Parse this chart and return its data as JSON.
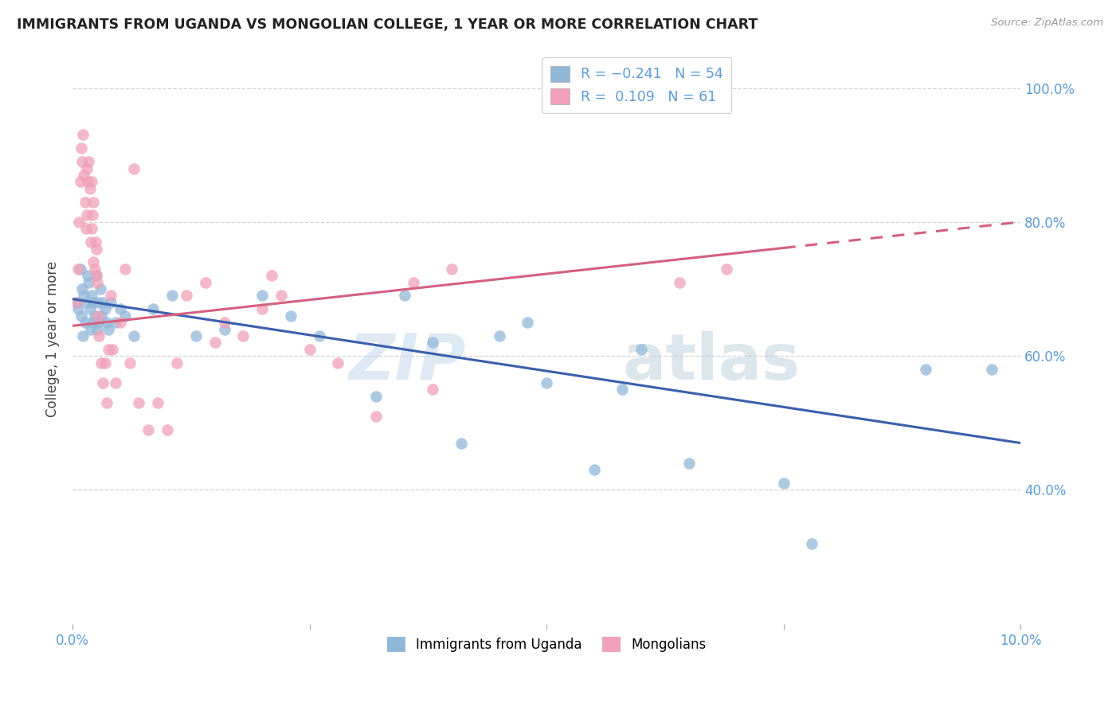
{
  "title": "IMMIGRANTS FROM UGANDA VS MONGOLIAN COLLEGE, 1 YEAR OR MORE CORRELATION CHART",
  "source": "Source: ZipAtlas.com",
  "ylabel": "College, 1 year or more",
  "xlim": [
    0.0,
    10.0
  ],
  "ylim": [
    20.0,
    105.0
  ],
  "blue_color": "#92b8d9",
  "pink_color": "#f0a0b8",
  "blue_line_color": "#3a5fad",
  "pink_line_color": "#d46080",
  "watermark_zip": "ZIP",
  "watermark_atlas": "atlas",
  "blue_line_x0": 0.0,
  "blue_line_y0": 68.5,
  "blue_line_x1": 10.0,
  "blue_line_y1": 47.0,
  "pink_line_x0": 0.0,
  "pink_line_y0": 64.5,
  "pink_line_x1": 10.0,
  "pink_line_y1": 80.0,
  "pink_solid_end": 7.5,
  "blue_x": [
    0.05,
    0.06,
    0.08,
    0.09,
    0.1,
    0.11,
    0.12,
    0.13,
    0.15,
    0.16,
    0.17,
    0.18,
    0.19,
    0.2,
    0.21,
    0.22,
    0.23,
    0.25,
    0.26,
    0.27,
    0.28,
    0.29,
    0.3,
    0.32,
    0.34,
    0.36,
    0.38,
    0.4,
    0.45,
    0.5,
    0.55,
    0.65,
    0.85,
    1.05,
    1.3,
    1.6,
    2.0,
    2.3,
    2.6,
    3.2,
    3.5,
    4.1,
    4.5,
    5.0,
    5.5,
    6.0,
    6.5,
    7.5,
    7.8,
    9.0,
    3.8,
    4.8,
    5.8,
    9.7
  ],
  "blue_y": [
    68,
    67,
    73,
    66,
    70,
    63,
    69,
    65,
    68,
    72,
    71,
    67,
    64,
    69,
    65,
    68,
    66,
    72,
    64,
    68,
    65,
    70,
    66,
    68,
    67,
    65,
    64,
    68,
    65,
    67,
    66,
    63,
    67,
    69,
    63,
    64,
    69,
    66,
    63,
    54,
    69,
    47,
    63,
    56,
    43,
    61,
    44,
    41,
    32,
    58,
    62,
    65,
    55,
    58
  ],
  "pink_x": [
    0.04,
    0.06,
    0.07,
    0.08,
    0.09,
    0.1,
    0.11,
    0.12,
    0.13,
    0.14,
    0.15,
    0.16,
    0.17,
    0.18,
    0.19,
    0.2,
    0.21,
    0.22,
    0.23,
    0.24,
    0.25,
    0.26,
    0.27,
    0.28,
    0.3,
    0.32,
    0.34,
    0.36,
    0.38,
    0.4,
    0.42,
    0.45,
    0.5,
    0.55,
    0.6,
    0.7,
    0.8,
    0.9,
    1.0,
    1.1,
    1.2,
    1.4,
    1.6,
    1.8,
    2.0,
    2.2,
    2.5,
    2.8,
    3.2,
    3.6,
    0.65,
    2.1,
    4.0,
    6.4,
    6.9,
    3.8,
    1.5,
    0.15,
    0.2,
    0.22,
    0.25
  ],
  "pink_y": [
    68,
    73,
    80,
    86,
    91,
    89,
    93,
    87,
    83,
    79,
    81,
    86,
    89,
    85,
    77,
    79,
    81,
    83,
    73,
    77,
    76,
    71,
    66,
    63,
    59,
    56,
    59,
    53,
    61,
    69,
    61,
    56,
    65,
    73,
    59,
    53,
    49,
    53,
    49,
    59,
    69,
    71,
    65,
    63,
    67,
    69,
    61,
    59,
    51,
    71,
    88,
    72,
    73,
    71,
    73,
    55,
    62,
    88,
    86,
    74,
    72
  ]
}
